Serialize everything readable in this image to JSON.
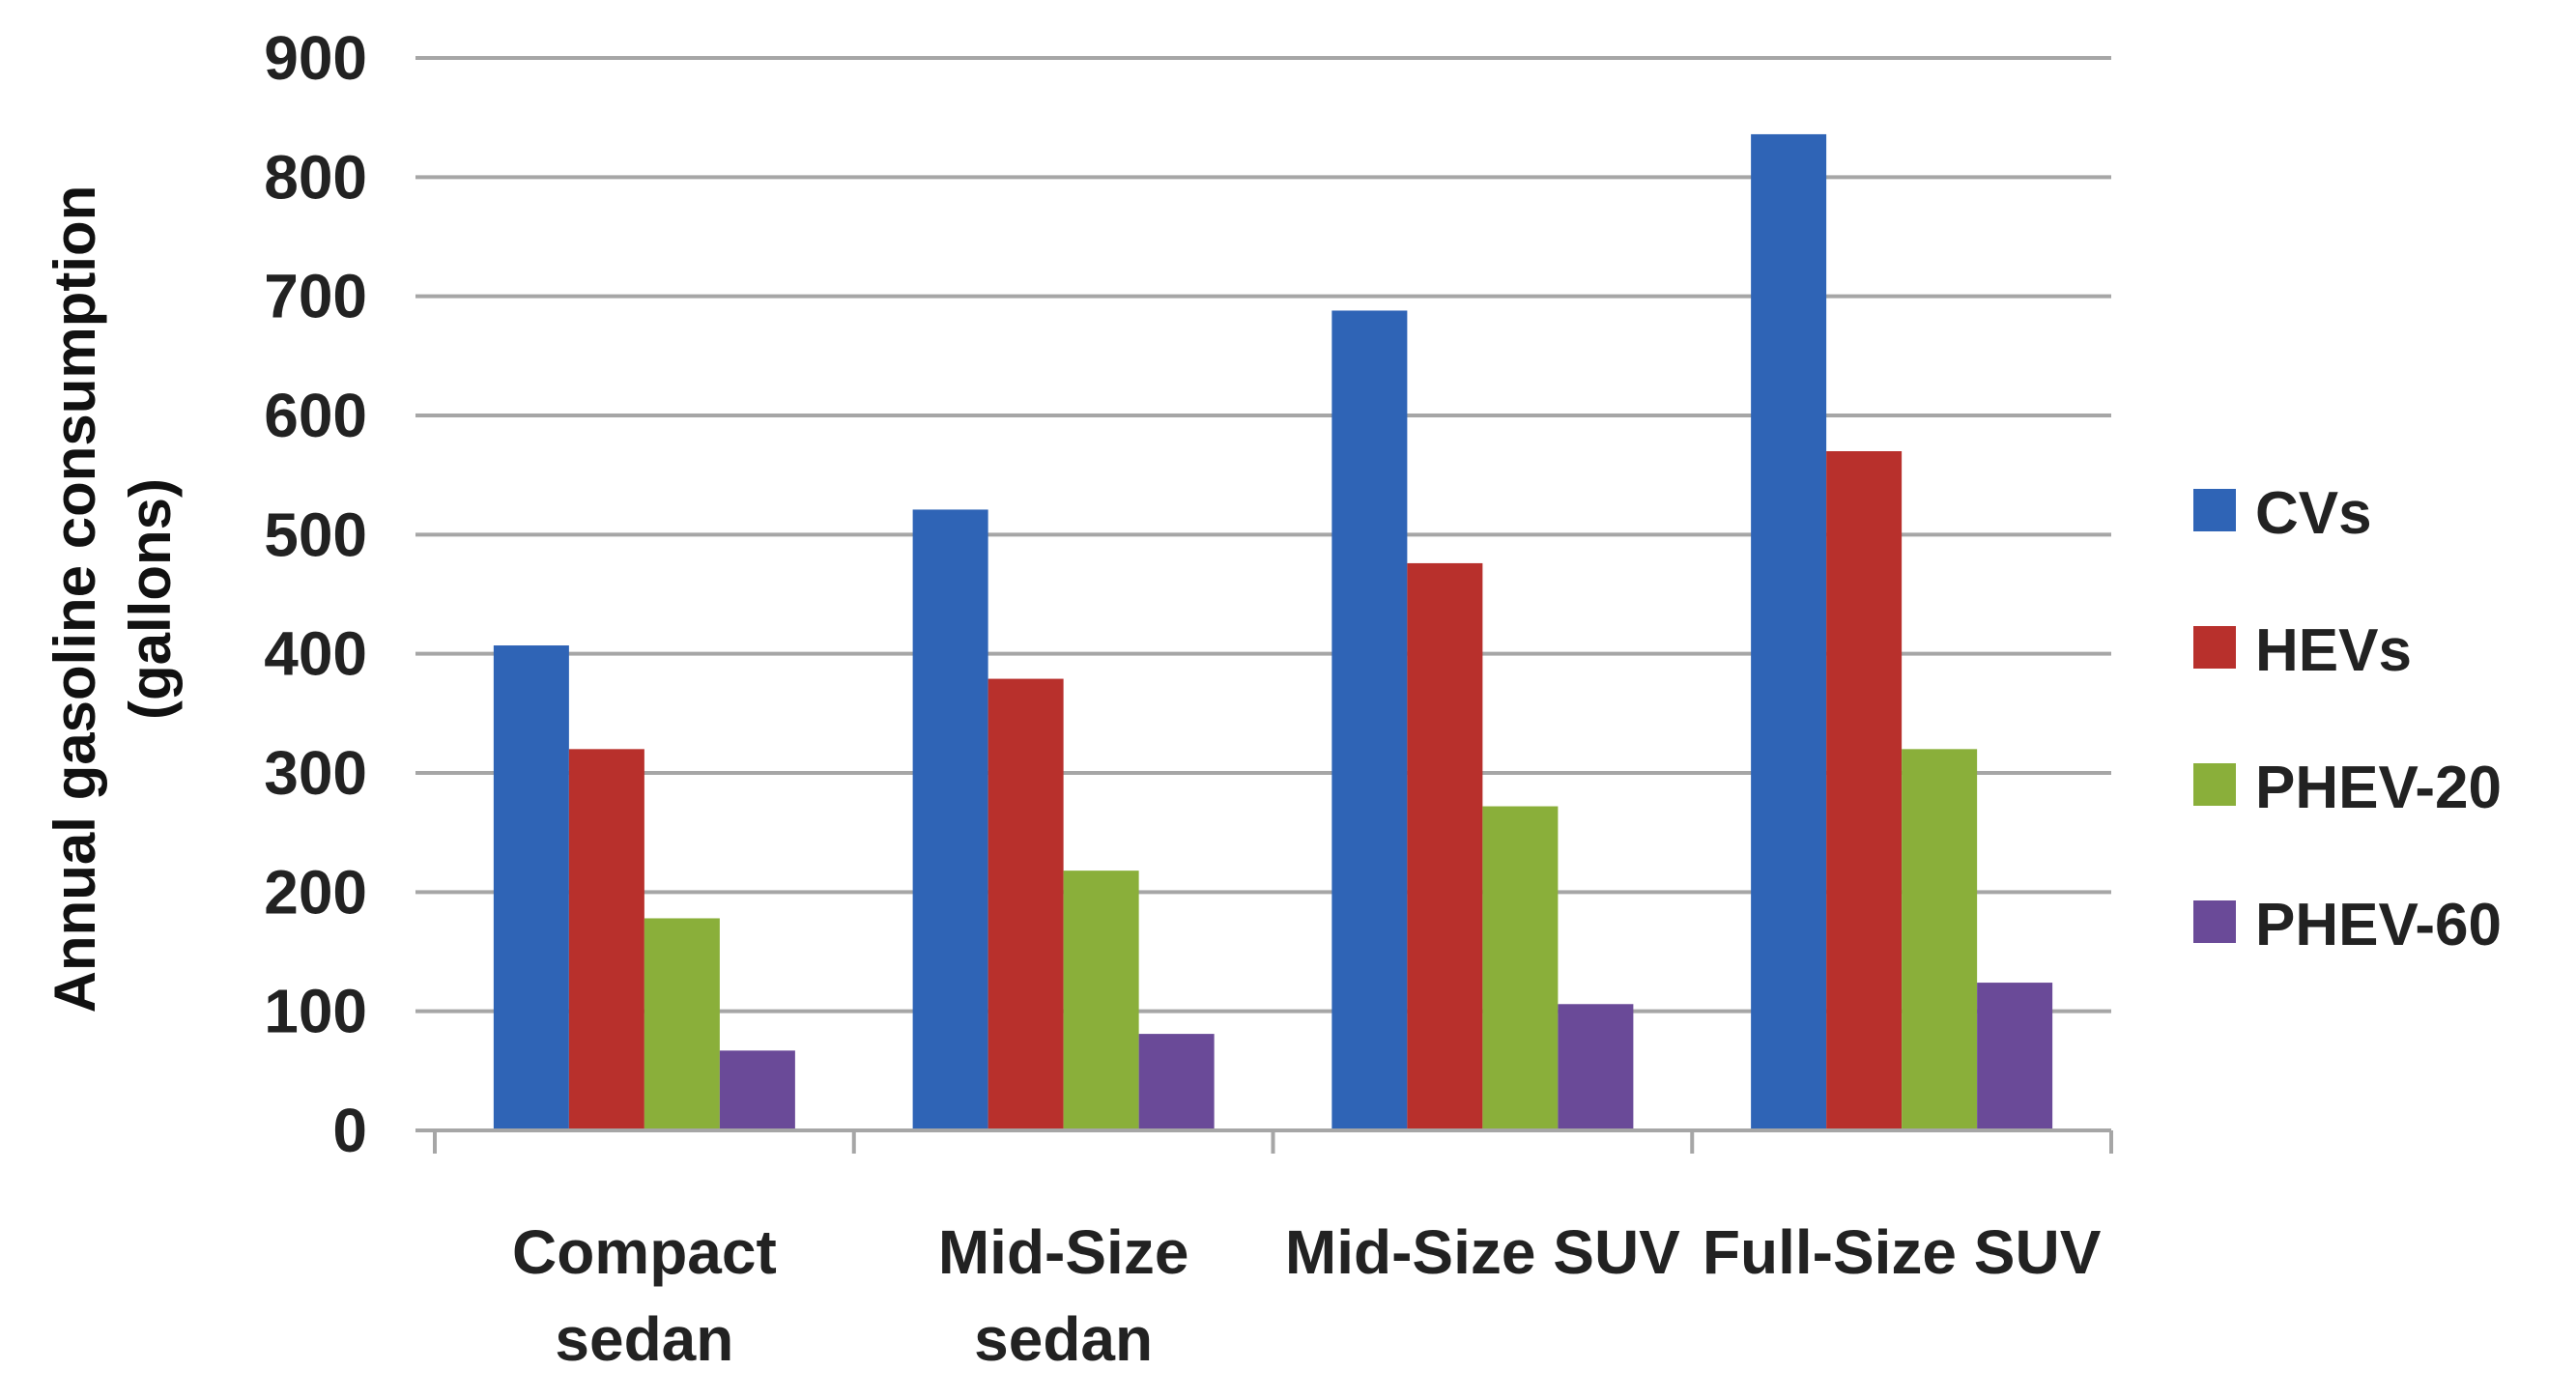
{
  "chart_data": {
    "type": "bar",
    "title": "",
    "xlabel": "",
    "ylabel": "Annual gasoline consumption (gallons)",
    "ylabel_lines": [
      "Annual gasoline consumption",
      "(gallons)"
    ],
    "ylim": [
      0,
      900
    ],
    "yticks": [
      0,
      100,
      200,
      300,
      400,
      500,
      600,
      700,
      800,
      900
    ],
    "grid": true,
    "legend_position": "right",
    "categories": [
      "Compact sedan",
      "Mid-Size sedan",
      "Mid-Size SUV",
      "Full-Size SUV"
    ],
    "category_label_lines": [
      [
        "Compact",
        "sedan"
      ],
      [
        "Mid-Size",
        "sedan"
      ],
      [
        "Mid-Size SUV"
      ],
      [
        "Full-Size SUV"
      ]
    ],
    "series": [
      {
        "name": "CVs",
        "color": "#2f64b6",
        "values": [
          407,
          521,
          688,
          836
        ]
      },
      {
        "name": "HEVs",
        "color": "#b8302c",
        "values": [
          320,
          379,
          476,
          570
        ]
      },
      {
        "name": "PHEV-20",
        "color": "#8aaf3a",
        "values": [
          178,
          218,
          272,
          320
        ]
      },
      {
        "name": "PHEV-60",
        "color": "#6a4a98",
        "values": [
          67,
          81,
          106,
          124
        ]
      }
    ]
  }
}
